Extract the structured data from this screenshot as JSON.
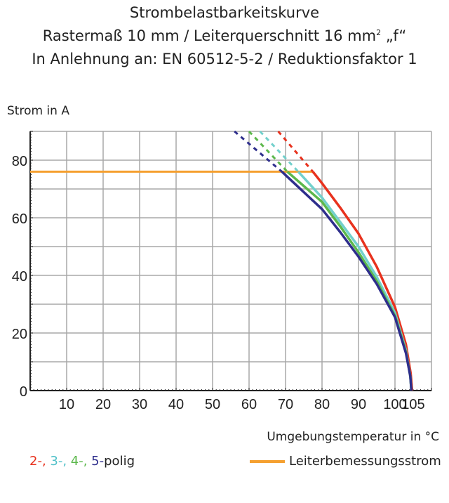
{
  "title_lines": [
    "Strombelastbarkeitskurve",
    "Rastermaß 10 mm / Leiterquerschnitt 16 mm",
    "In Anlehnung an: EN 60512-5-2 / Reduktionsfaktor 1"
  ],
  "title_sup": "2",
  "title_suffix": " „f“",
  "chart_data": {
    "type": "line",
    "ylabel": "Strom in A",
    "xlabel": "Umgebungstemperatur in °C",
    "xlim": [
      0,
      110
    ],
    "ylim": [
      0,
      90
    ],
    "xticks": [
      10,
      20,
      30,
      40,
      50,
      60,
      70,
      80,
      90,
      100,
      105
    ],
    "yticks": [
      0,
      20,
      40,
      60,
      80
    ],
    "grid": true,
    "series": [
      {
        "name": "2-",
        "color": "#e8321e",
        "dashed": [
          [
            68,
            90
          ],
          [
            77.5,
            76
          ]
        ],
        "points": [
          [
            77.5,
            76
          ],
          [
            80,
            72
          ],
          [
            85,
            63.5
          ],
          [
            90,
            54.5
          ],
          [
            95,
            43
          ],
          [
            100,
            29
          ],
          [
            103,
            16
          ],
          [
            104.3,
            6
          ],
          [
            104.7,
            0
          ]
        ]
      },
      {
        "name": "3-",
        "color": "#72d0cc",
        "dashed": [
          [
            63,
            90
          ],
          [
            73.5,
            76
          ]
        ],
        "points": [
          [
            73.5,
            76
          ],
          [
            80,
            67
          ],
          [
            85,
            58.5
          ],
          [
            90,
            50
          ],
          [
            95,
            39.5
          ],
          [
            100,
            27
          ],
          [
            103,
            14
          ],
          [
            104.2,
            5
          ],
          [
            104.5,
            0
          ]
        ]
      },
      {
        "name": "4-",
        "color": "#5cb84c",
        "dashed": [
          [
            60,
            90
          ],
          [
            70.5,
            76
          ]
        ],
        "points": [
          [
            70.5,
            76
          ],
          [
            80,
            65.5
          ],
          [
            85,
            57
          ],
          [
            90,
            48
          ],
          [
            95,
            38
          ],
          [
            100,
            26
          ],
          [
            103,
            13.5
          ],
          [
            104.2,
            5
          ],
          [
            104.5,
            0
          ]
        ]
      },
      {
        "name": "5-",
        "color": "#2e2e8c",
        "dashed": [
          [
            56,
            90
          ],
          [
            69,
            76
          ]
        ],
        "points": [
          [
            69,
            76
          ],
          [
            80,
            63
          ],
          [
            85,
            55
          ],
          [
            90,
            46.5
          ],
          [
            95,
            37
          ],
          [
            100,
            25.5
          ],
          [
            103,
            13
          ],
          [
            104.2,
            5
          ],
          [
            104.5,
            0
          ]
        ]
      }
    ],
    "rated_current": {
      "name": "Leiterbemessungsstrom",
      "value": 76,
      "x_end": 77.5,
      "color": "#f5a030"
    }
  },
  "legend": {
    "items": [
      "2-, ",
      "3-, ",
      "4-, ",
      "5-"
    ],
    "suffix": "polig",
    "rated": "Leiterbemessungsstrom"
  }
}
